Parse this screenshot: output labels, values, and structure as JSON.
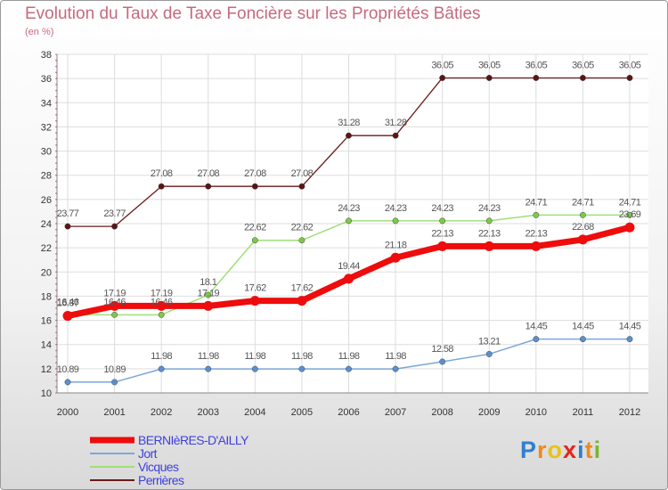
{
  "title": "Evolution du Taux de Taxe Foncière sur les Propriétés Bâties",
  "subtitle": "(en %)",
  "logo": {
    "text": "Proxiti",
    "letters": [
      {
        "ch": "P",
        "color": "#2f7fd0"
      },
      {
        "ch": "r",
        "color": "#f08a1c"
      },
      {
        "ch": "o",
        "color": "#e8c21a"
      },
      {
        "ch": "x",
        "color": "#e2261c"
      },
      {
        "ch": "i",
        "color": "#2f7fd0"
      },
      {
        "ch": "t",
        "color": "#f08a1c"
      },
      {
        "ch": "i",
        "color": "#7ab62f"
      }
    ]
  },
  "chart_data": {
    "type": "line",
    "title": "Evolution du Taux de Taxe Foncière sur les Propriétés Bâties",
    "ylabel": "(en %)",
    "xlabel": "",
    "ylim": [
      10,
      38
    ],
    "yticks": [
      10,
      12,
      14,
      16,
      18,
      20,
      22,
      24,
      26,
      28,
      30,
      32,
      34,
      36,
      38
    ],
    "grid": true,
    "legend": "bottom-left",
    "x": [
      2000,
      2001,
      2002,
      2003,
      2004,
      2005,
      2006,
      2007,
      2008,
      2009,
      2010,
      2011,
      2012
    ],
    "series": [
      {
        "name": "Perrières",
        "color": "#6b1a1a",
        "marker": "#5a1414",
        "width": 1.3,
        "values": [
          23.77,
          23.77,
          27.08,
          27.08,
          27.08,
          27.08,
          31.28,
          31.28,
          36.05,
          36.05,
          36.05,
          36.05,
          36.05
        ],
        "labels": [
          "23.77",
          "23.77",
          "27.08",
          "27.08",
          "27.08",
          "27.08",
          "31.28",
          "31.28",
          "36.05",
          "36.05",
          "36.05",
          "36.05",
          "36.05"
        ]
      },
      {
        "name": "Vicques",
        "color": "#9ee07a",
        "marker": "#7ec84a",
        "width": 1.5,
        "values": [
          16.46,
          16.46,
          16.46,
          18.1,
          22.62,
          22.62,
          24.23,
          24.23,
          24.23,
          24.23,
          24.71,
          24.71,
          24.71
        ],
        "labels": [
          "16.46",
          "16.46",
          "16.46",
          "18.1",
          "22.62",
          "22.62",
          "24.23",
          "24.23",
          "24.23",
          "24.23",
          "24.71",
          "24.71",
          "24.71"
        ]
      },
      {
        "name": "Jort",
        "color": "#7aa8d8",
        "marker": "#5b8fcf",
        "width": 1.5,
        "values": [
          10.89,
          10.89,
          11.98,
          11.98,
          11.98,
          11.98,
          11.98,
          11.98,
          12.58,
          13.21,
          14.45,
          14.45,
          14.45
        ],
        "labels": [
          "10.89",
          "10.89",
          "11.98",
          "11.98",
          "11.98",
          "11.98",
          "11.98",
          "11.98",
          "12.58",
          "13.21",
          "14.45",
          "14.45",
          "14.45"
        ]
      },
      {
        "name": "BERNIèRES-D'AILLY",
        "color": "#ee0c0c",
        "marker": "#ee0c0c",
        "width": 7,
        "values": [
          16.37,
          17.19,
          17.19,
          17.19,
          17.62,
          17.62,
          19.44,
          21.18,
          22.13,
          22.13,
          22.13,
          22.68,
          23.69
        ],
        "labels": [
          "16.37",
          "17.19",
          "17.19",
          "17.19",
          "17.62",
          "17.62",
          "19.44",
          "21.18",
          "22.13",
          "22.13",
          "22.13",
          "22.68",
          "23.69"
        ]
      }
    ],
    "legend_entries": [
      {
        "name": "BERNIèRES-D'AILLY",
        "color": "#ee0c0c",
        "width": 7
      },
      {
        "name": "Jort",
        "color": "#7aa8d8",
        "width": 2
      },
      {
        "name": "Vicques",
        "color": "#9ee07a",
        "width": 2
      },
      {
        "name": "Perrières",
        "color": "#6b1a1a",
        "width": 2
      }
    ]
  }
}
